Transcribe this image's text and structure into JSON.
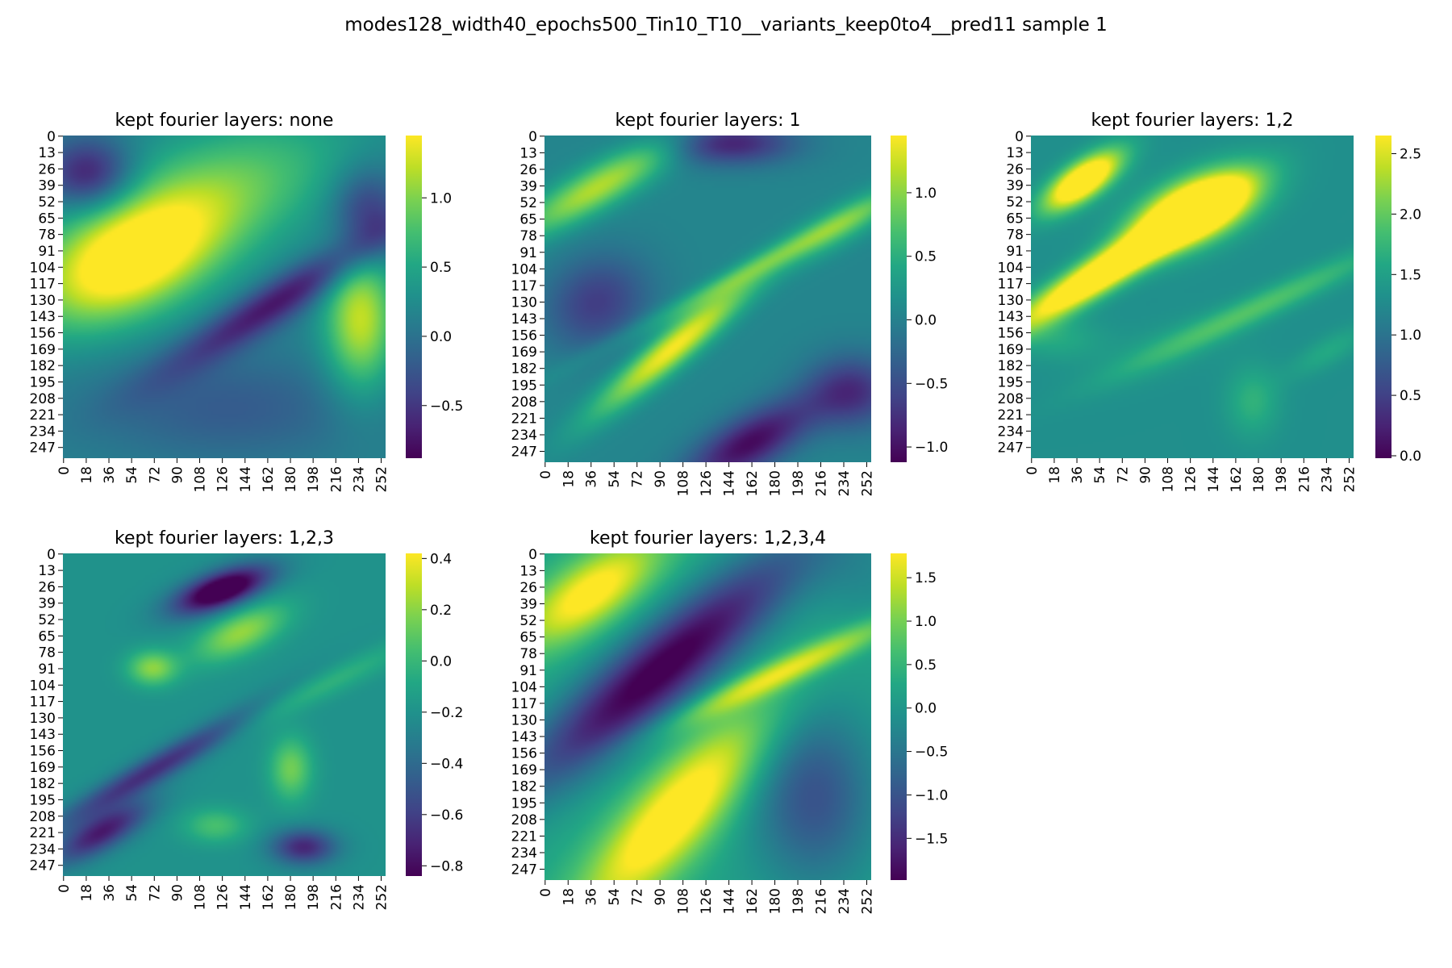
{
  "figure": {
    "title": "modes128_width40_epochs500_Tin10_T10__variants_keep0to4__pred11 sample 1"
  },
  "chart_data": [
    {
      "type": "heatmap",
      "title": "kept fourier layers: none",
      "y_ticks": [
        "0",
        "13",
        "26",
        "39",
        "52",
        "65",
        "78",
        "91",
        "104",
        "117",
        "130",
        "143",
        "156",
        "169",
        "182",
        "195",
        "208",
        "221",
        "234",
        "247"
      ],
      "x_ticks": [
        "0",
        "18",
        "36",
        "54",
        "72",
        "90",
        "108",
        "126",
        "144",
        "162",
        "180",
        "198",
        "216",
        "234",
        "252"
      ],
      "colorbar": {
        "min": -0.88,
        "max": 1.45,
        "ticks": [
          -0.5,
          0.0,
          0.5,
          1.0
        ],
        "tick_labels": [
          "−0.5",
          "0.0",
          "0.5",
          "1.0"
        ]
      },
      "colormap": "viridis",
      "features": [
        {
          "x": 50,
          "y": 100,
          "sx": 55,
          "sy": 30,
          "angle": -25,
          "amp": 1.45
        },
        {
          "x": 120,
          "y": 45,
          "sx": 80,
          "sy": 35,
          "angle": -20,
          "amp": 0.7
        },
        {
          "x": 20,
          "y": 30,
          "sx": 25,
          "sy": 20,
          "angle": 0,
          "amp": -0.9
        },
        {
          "x": 170,
          "y": 130,
          "sx": 70,
          "sy": 12,
          "angle": -32,
          "amp": -0.9
        },
        {
          "x": 240,
          "y": 60,
          "sx": 20,
          "sy": 25,
          "angle": 0,
          "amp": -0.7
        },
        {
          "x": 235,
          "y": 145,
          "sx": 20,
          "sy": 40,
          "angle": 0,
          "amp": 1.1
        },
        {
          "x": 130,
          "y": 215,
          "sx": 80,
          "sy": 30,
          "angle": 0,
          "amp": -0.35
        }
      ],
      "base": 0.15
    },
    {
      "type": "heatmap",
      "title": "kept fourier layers: 1",
      "y_ticks": [
        "0",
        "13",
        "26",
        "39",
        "52",
        "65",
        "78",
        "91",
        "104",
        "117",
        "130",
        "143",
        "156",
        "169",
        "182",
        "195",
        "208",
        "221",
        "234",
        "247"
      ],
      "x_ticks": [
        "0",
        "18",
        "36",
        "54",
        "72",
        "90",
        "108",
        "126",
        "144",
        "162",
        "180",
        "198",
        "216",
        "234",
        "252"
      ],
      "colorbar": {
        "min": -1.12,
        "max": 1.45,
        "ticks": [
          -1.0,
          -0.5,
          0.0,
          0.5,
          1.0
        ],
        "tick_labels": [
          "−1.0",
          "−0.5",
          "0.0",
          "0.5",
          "1.0"
        ]
      },
      "colormap": "viridis",
      "features": [
        {
          "x": 100,
          "y": 165,
          "sx": 55,
          "sy": 10,
          "angle": -40,
          "amp": 1.4
        },
        {
          "x": 40,
          "y": 40,
          "sx": 50,
          "sy": 12,
          "angle": -30,
          "amp": 1.1
        },
        {
          "x": 230,
          "y": 70,
          "sx": 40,
          "sy": 10,
          "angle": -30,
          "amp": 0.7
        },
        {
          "x": 160,
          "y": 240,
          "sx": 40,
          "sy": 15,
          "angle": -30,
          "amp": -1.1
        },
        {
          "x": 145,
          "y": 5,
          "sx": 35,
          "sy": 12,
          "angle": 0,
          "amp": -0.9
        },
        {
          "x": 40,
          "y": 130,
          "sx": 30,
          "sy": 25,
          "angle": -30,
          "amp": -0.7
        },
        {
          "x": 240,
          "y": 200,
          "sx": 25,
          "sy": 20,
          "angle": 0,
          "amp": -0.8
        },
        {
          "x": 150,
          "y": 110,
          "sx": 90,
          "sy": 6,
          "angle": -28,
          "amp": 0.5
        }
      ],
      "base": 0.05
    },
    {
      "type": "heatmap",
      "title": "kept fourier layers: 1,2",
      "y_ticks": [
        "0",
        "13",
        "26",
        "39",
        "52",
        "65",
        "78",
        "91",
        "104",
        "117",
        "130",
        "143",
        "156",
        "169",
        "182",
        "195",
        "208",
        "221",
        "234",
        "247"
      ],
      "x_ticks": [
        "0",
        "18",
        "36",
        "54",
        "72",
        "90",
        "108",
        "126",
        "144",
        "162",
        "180",
        "198",
        "216",
        "234",
        "252"
      ],
      "colorbar": {
        "min": -0.02,
        "max": 2.65,
        "ticks": [
          0.0,
          0.5,
          1.0,
          1.5,
          2.0,
          2.5
        ],
        "tick_labels": [
          "0.0",
          "0.5",
          "1.0",
          "1.5",
          "2.0",
          "2.5"
        ]
      },
      "colormap": "viridis",
      "features": [
        {
          "x": 130,
          "y": 58,
          "sx": 35,
          "sy": 16,
          "angle": -25,
          "amp": 2.6
        },
        {
          "x": 60,
          "y": 105,
          "sx": 60,
          "sy": 10,
          "angle": -32,
          "amp": 2.2
        },
        {
          "x": 40,
          "y": 35,
          "sx": 25,
          "sy": 10,
          "angle": -35,
          "amp": 2.1
        },
        {
          "x": 100,
          "y": 170,
          "sx": 45,
          "sy": 15,
          "angle": -20,
          "amp": 0.15
        },
        {
          "x": 20,
          "y": 160,
          "sx": 25,
          "sy": 12,
          "angle": 0,
          "amp": 0.3
        },
        {
          "x": 175,
          "y": 210,
          "sx": 15,
          "sy": 20,
          "angle": 0,
          "amp": 0.4
        },
        {
          "x": 235,
          "y": 170,
          "sx": 25,
          "sy": 8,
          "angle": -30,
          "amp": 0.3
        },
        {
          "x": 180,
          "y": 135,
          "sx": 80,
          "sy": 8,
          "angle": -25,
          "amp": 0.6
        }
      ],
      "base": 1.3
    },
    {
      "type": "heatmap",
      "title": "kept fourier layers: 1,2,3",
      "y_ticks": [
        "0",
        "13",
        "26",
        "39",
        "52",
        "65",
        "78",
        "91",
        "104",
        "117",
        "130",
        "143",
        "156",
        "169",
        "182",
        "195",
        "208",
        "221",
        "234",
        "247"
      ],
      "x_ticks": [
        "0",
        "18",
        "36",
        "54",
        "72",
        "90",
        "108",
        "126",
        "144",
        "162",
        "180",
        "198",
        "216",
        "234",
        "252"
      ],
      "colorbar": {
        "min": -0.84,
        "max": 0.42,
        "ticks": [
          -0.8,
          -0.6,
          -0.4,
          -0.2,
          0.0,
          0.2,
          0.4
        ],
        "tick_labels": [
          "−0.8",
          "−0.6",
          "−0.4",
          "−0.2",
          "0.0",
          "0.2",
          "0.4"
        ]
      },
      "colormap": "viridis",
      "features": [
        {
          "x": 140,
          "y": 62,
          "sx": 28,
          "sy": 12,
          "angle": -25,
          "amp": 0.42
        },
        {
          "x": 70,
          "y": 90,
          "sx": 14,
          "sy": 10,
          "angle": 0,
          "amp": 0.4
        },
        {
          "x": 125,
          "y": 28,
          "sx": 28,
          "sy": 10,
          "angle": -20,
          "amp": -0.84
        },
        {
          "x": 180,
          "y": 170,
          "sx": 12,
          "sy": 18,
          "angle": 0,
          "amp": 0.35
        },
        {
          "x": 120,
          "y": 215,
          "sx": 18,
          "sy": 10,
          "angle": 0,
          "amp": 0.25
        },
        {
          "x": 80,
          "y": 165,
          "sx": 70,
          "sy": 8,
          "angle": -30,
          "amp": -0.5
        },
        {
          "x": 30,
          "y": 220,
          "sx": 30,
          "sy": 10,
          "angle": -30,
          "amp": -0.55
        },
        {
          "x": 190,
          "y": 110,
          "sx": 70,
          "sy": 8,
          "angle": -25,
          "amp": 0.2
        },
        {
          "x": 190,
          "y": 232,
          "sx": 18,
          "sy": 10,
          "angle": 0,
          "amp": -0.5
        }
      ],
      "base": -0.2
    },
    {
      "type": "heatmap",
      "title": "kept fourier layers: 1,2,3,4",
      "y_ticks": [
        "0",
        "13",
        "26",
        "39",
        "52",
        "65",
        "78",
        "91",
        "104",
        "117",
        "130",
        "143",
        "156",
        "169",
        "182",
        "195",
        "208",
        "221",
        "234",
        "247"
      ],
      "x_ticks": [
        "0",
        "18",
        "36",
        "54",
        "72",
        "90",
        "108",
        "126",
        "144",
        "162",
        "180",
        "198",
        "216",
        "234",
        "252"
      ],
      "colorbar": {
        "min": -1.98,
        "max": 1.78,
        "ticks": [
          -1.5,
          -1.0,
          -0.5,
          0.0,
          0.5,
          1.0,
          1.5
        ],
        "tick_labels": [
          "−1.5",
          "−1.0",
          "−0.5",
          "0.0",
          "0.5",
          "1.0",
          "1.5"
        ]
      },
      "colormap": "viridis",
      "features": [
        {
          "x": 100,
          "y": 205,
          "sx": 75,
          "sy": 22,
          "angle": -48,
          "amp": 2.0
        },
        {
          "x": 35,
          "y": 30,
          "sx": 45,
          "sy": 18,
          "angle": -35,
          "amp": 1.8
        },
        {
          "x": 190,
          "y": 90,
          "sx": 70,
          "sy": 8,
          "angle": -25,
          "amp": 1.4
        },
        {
          "x": 90,
          "y": 90,
          "sx": 100,
          "sy": 22,
          "angle": -40,
          "amp": -2.3
        },
        {
          "x": 210,
          "y": 190,
          "sx": 35,
          "sy": 50,
          "angle": 0,
          "amp": -1.2
        },
        {
          "x": 250,
          "y": 15,
          "sx": 30,
          "sy": 30,
          "angle": 0,
          "amp": -0.4
        }
      ],
      "base": 0.2
    }
  ]
}
